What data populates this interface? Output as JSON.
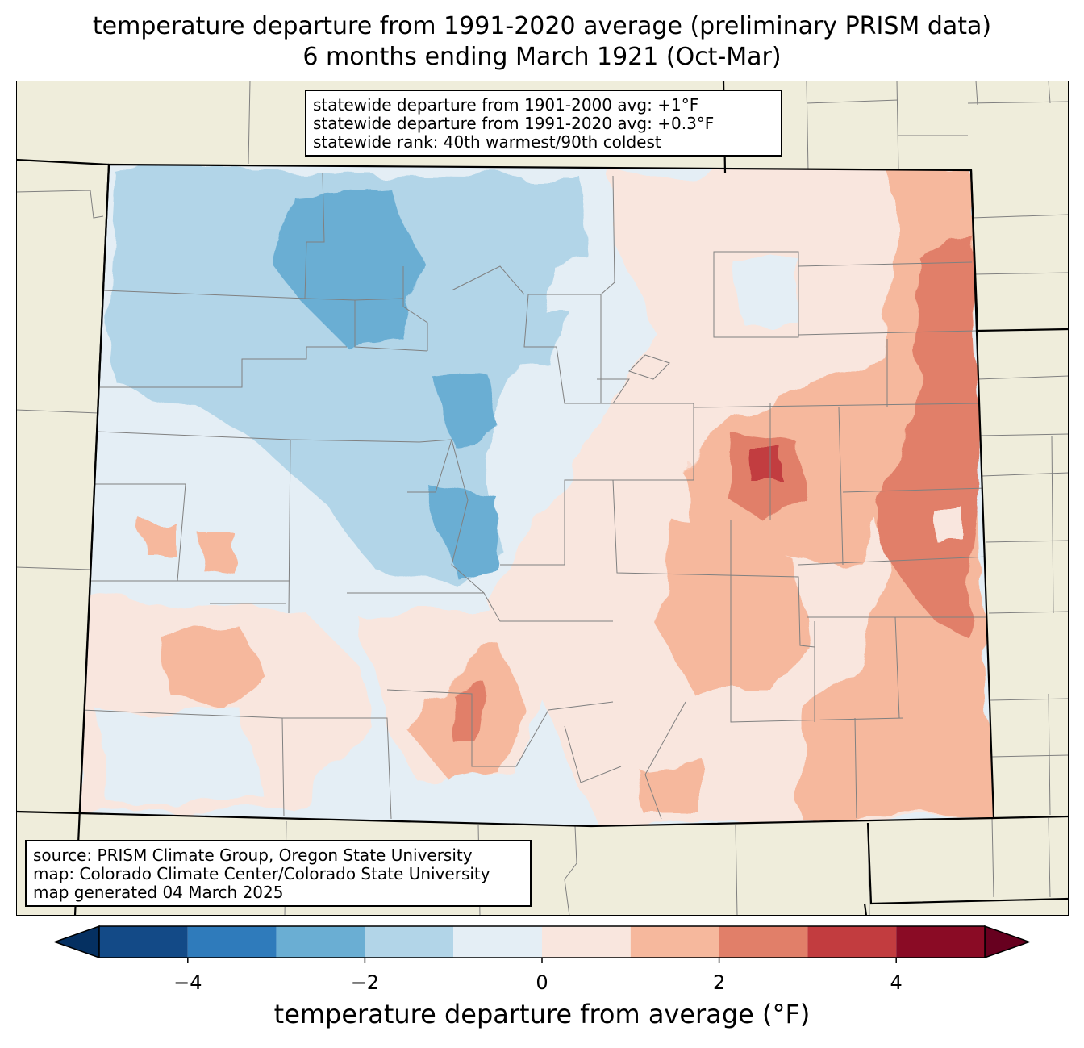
{
  "title": {
    "line1": "temperature departure from 1991-2020 average (preliminary PRISM data)",
    "line2": "6 months ending March 1921 (Oct-Mar)"
  },
  "stats_box": {
    "line1": "statewide departure from 1901-2000 avg: +1°F",
    "line2": "statewide departure from 1991-2020 avg: +0.3°F",
    "line3": "statewide rank: 40th warmest/90th coldest"
  },
  "source_box": {
    "line1": "source: PRISM Climate Group, Oregon State University",
    "line2": "map: Colorado Climate Center/Colorado State University",
    "line3": "map generated 04 March 2025"
  },
  "colorbar": {
    "label": "temperature departure from average (°F)",
    "ticks": [
      "−4",
      "−2",
      "0",
      "2",
      "4"
    ],
    "tick_values": [
      -4,
      -2,
      0,
      2,
      4
    ],
    "range": [
      -5,
      5
    ],
    "bins": [
      {
        "from": -5,
        "to": -4,
        "color": "#134a87"
      },
      {
        "from": -4,
        "to": -3,
        "color": "#2f7bbb"
      },
      {
        "from": -3,
        "to": -2,
        "color": "#6aaed3"
      },
      {
        "from": -2,
        "to": -1,
        "color": "#b2d5e8"
      },
      {
        "from": -1,
        "to": 0,
        "color": "#e4eef5"
      },
      {
        "from": 0,
        "to": 1,
        "color": "#f9e6de"
      },
      {
        "from": 1,
        "to": 2,
        "color": "#f6b89d"
      },
      {
        "from": 2,
        "to": 3,
        "color": "#e17f69"
      },
      {
        "from": 3,
        "to": 4,
        "color": "#c23c3f"
      },
      {
        "from": 4,
        "to": 5,
        "color": "#8a0b25"
      }
    ],
    "under_color": "#053061",
    "over_color": "#67001f"
  },
  "colors": {
    "background_land": "#efeddb",
    "state_border": "#000000",
    "county_border": "#808080"
  }
}
